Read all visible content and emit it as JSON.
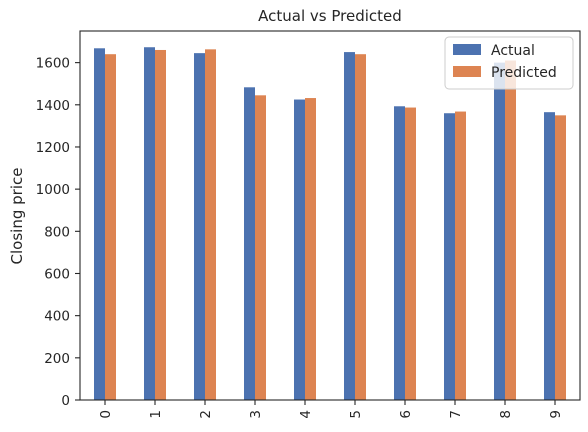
{
  "chart_data": {
    "type": "bar",
    "title": "Actual vs Predicted",
    "xlabel": "",
    "ylabel": "Closing price",
    "categories": [
      "0",
      "1",
      "2",
      "3",
      "4",
      "5",
      "6",
      "7",
      "8",
      "9"
    ],
    "series": [
      {
        "name": "Actual",
        "color": "#4c72b0",
        "values": [
          1668,
          1673,
          1645,
          1483,
          1425,
          1650,
          1393,
          1360,
          1600,
          1365
        ]
      },
      {
        "name": "Predicted",
        "color": "#dd8452",
        "values": [
          1640,
          1660,
          1663,
          1445,
          1432,
          1640,
          1387,
          1368,
          1610,
          1350
        ]
      }
    ],
    "ylim": [
      0,
      1750
    ],
    "yticks": [
      0,
      200,
      400,
      600,
      800,
      1000,
      1200,
      1400,
      1600
    ],
    "grid": false,
    "legend_position": "top-right"
  }
}
